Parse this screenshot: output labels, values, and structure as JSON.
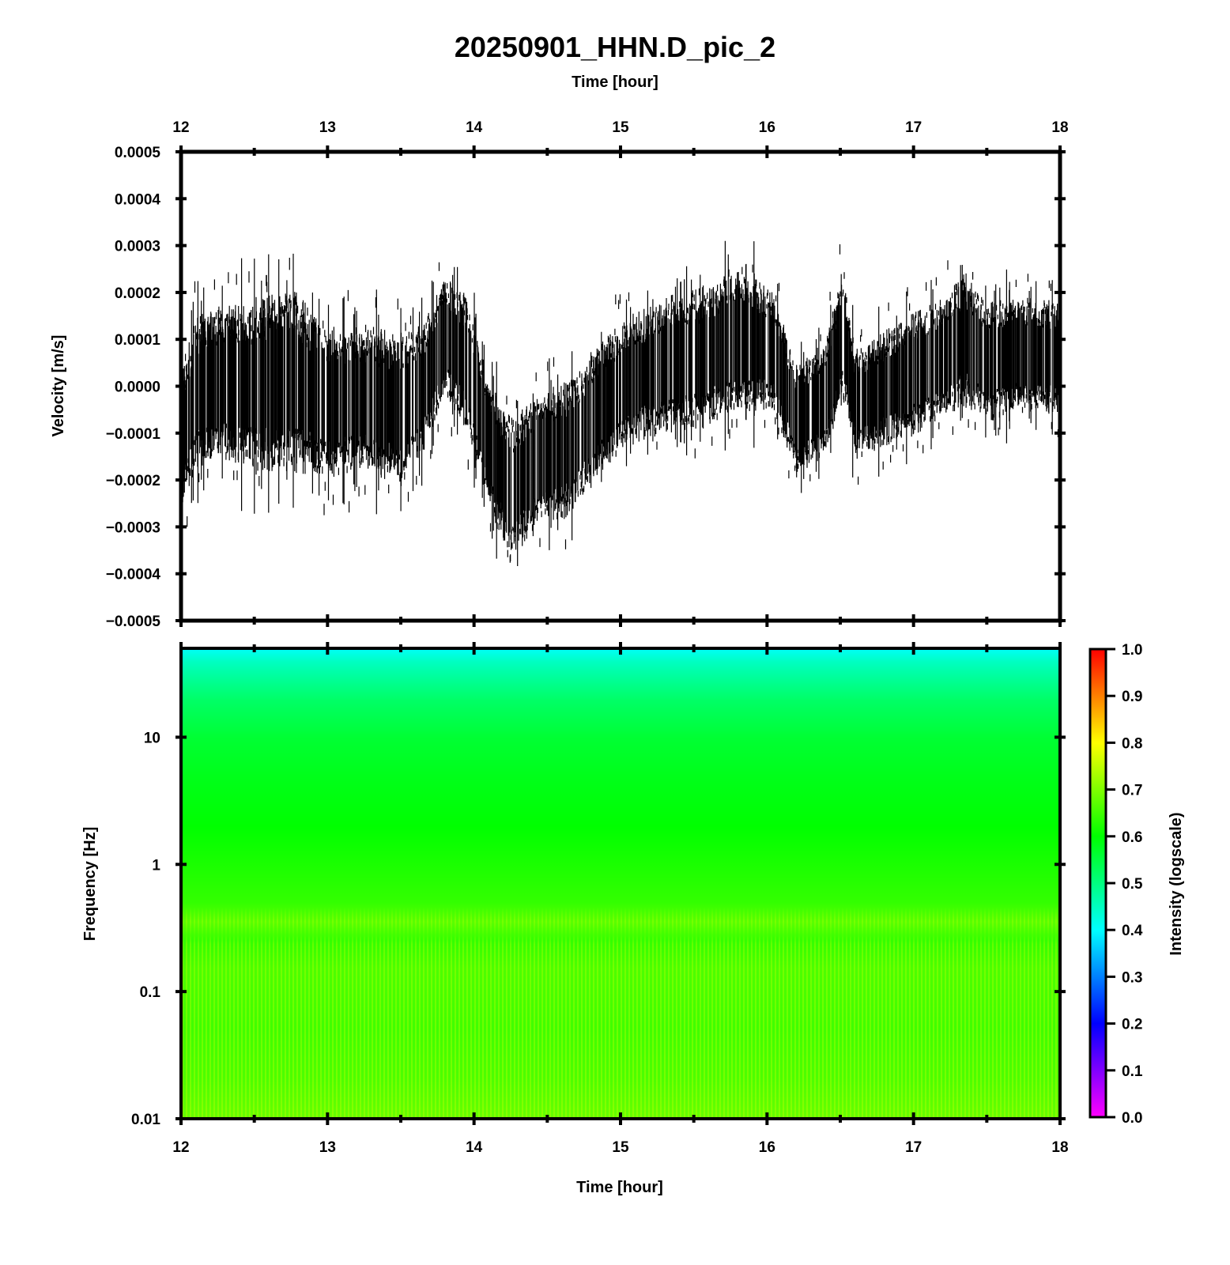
{
  "chart_data": [
    {
      "type": "line",
      "title": "20250901_HHN.D_pic_2",
      "xlabel": "Time [hour]",
      "ylabel": "Velocity [m/s]",
      "xlim": [
        12,
        18
      ],
      "ylim": [
        -0.0005,
        0.0005
      ],
      "xticks": [
        12,
        13,
        14,
        15,
        16,
        17,
        18
      ],
      "xtick_labels": [
        "12",
        "13",
        "14",
        "15",
        "16",
        "17",
        "18"
      ],
      "yticks": [
        0.0005,
        0.0004,
        0.0003,
        0.0002,
        0.0001,
        0.0,
        -0.0001,
        -0.0002,
        -0.0003,
        -0.0004,
        -0.0005
      ],
      "ytick_labels": [
        "0.0005",
        "0.0004",
        "0.0003",
        "0.0002",
        "0.0001",
        "0.0000",
        "−0.0001",
        "−0.0002",
        "−0.0003",
        "−0.0004",
        "−0.0005"
      ],
      "series": [
        {
          "color": "#000000",
          "envelope": {
            "x": [
              12.0,
              12.1,
              12.25,
              12.5,
              12.75,
              13.0,
              13.25,
              13.5,
              13.65,
              13.8,
              13.95,
              14.1,
              14.25,
              14.45,
              14.65,
              14.85,
              15.05,
              15.3,
              15.55,
              15.8,
              16.05,
              16.2,
              16.4,
              16.52,
              16.6,
              16.8,
              17.0,
              17.2,
              17.35,
              17.5,
              17.7,
              17.85,
              18.0
            ],
            "upper": [
              7e-05,
              0.00018,
              0.0002,
              0.00022,
              0.00025,
              0.00016,
              0.00016,
              0.00014,
              0.00016,
              0.00026,
              0.00022,
              4e-05,
              -4e-05,
              1e-05,
              4e-05,
              0.00012,
              0.00017,
              0.00022,
              0.00024,
              0.00029,
              0.00023,
              6e-05,
              0.00012,
              0.00029,
              0.0001,
              0.00014,
              0.00018,
              0.00021,
              0.00027,
              0.0002,
              0.00022,
              0.00021,
              0.0002
            ],
            "lower": [
              -0.0003,
              -0.00021,
              -0.00018,
              -0.00022,
              -0.00022,
              -0.00023,
              -0.00021,
              -0.00024,
              -0.00018,
              -4e-05,
              -0.00012,
              -0.00028,
              -0.00041,
              -0.00031,
              -0.00031,
              -0.00022,
              -0.00015,
              -0.00013,
              -0.00012,
              -9e-05,
              -8e-05,
              -0.00021,
              -0.00017,
              -6e-05,
              -0.00018,
              -0.00015,
              -0.00013,
              -9e-05,
              -7e-05,
              -0.0001,
              -8e-05,
              -8e-05,
              -8e-05
            ]
          }
        }
      ],
      "grid": false
    },
    {
      "type": "heatmap",
      "xlabel": "Time [hour]",
      "ylabel": "Frequency [Hz]",
      "xlim": [
        12,
        18
      ],
      "ylim": [
        0.01,
        50
      ],
      "yscale": "log",
      "xticks": [
        12,
        13,
        14,
        15,
        16,
        17,
        18
      ],
      "xtick_labels": [
        "12",
        "13",
        "14",
        "15",
        "16",
        "17",
        "18"
      ],
      "yticks": [
        10,
        1,
        0.1,
        0.01
      ],
      "ytick_labels": [
        "10",
        "1",
        "0.1",
        "0.01"
      ],
      "intensity_profile": {
        "frequency_hz": [
          50,
          40,
          30,
          20,
          10,
          5,
          2,
          1,
          0.5,
          0.35,
          0.25,
          0.15,
          0.05,
          0.02,
          0.01
        ],
        "intensity": [
          0.41,
          0.45,
          0.48,
          0.52,
          0.56,
          0.58,
          0.6,
          0.62,
          0.64,
          0.67,
          0.64,
          0.66,
          0.65,
          0.66,
          0.68
        ]
      },
      "colorbar": {
        "label": "Intensity (logscale)",
        "range": [
          0.0,
          1.0
        ],
        "ticks": [
          1.0,
          0.9,
          0.8,
          0.7,
          0.6,
          0.5,
          0.4,
          0.3,
          0.2,
          0.1,
          0.0
        ],
        "tick_labels": [
          "1.0",
          "0.9",
          "0.8",
          "0.7",
          "0.6",
          "0.5",
          "0.4",
          "0.3",
          "0.2",
          "0.1",
          "0.0"
        ],
        "colors": [
          "#ff00ff",
          "#8000ff",
          "#0000ff",
          "#0080ff",
          "#00ffff",
          "#00ff80",
          "#00ff00",
          "#80ff00",
          "#ffff00",
          "#ff8000",
          "#ff0000"
        ]
      }
    }
  ]
}
